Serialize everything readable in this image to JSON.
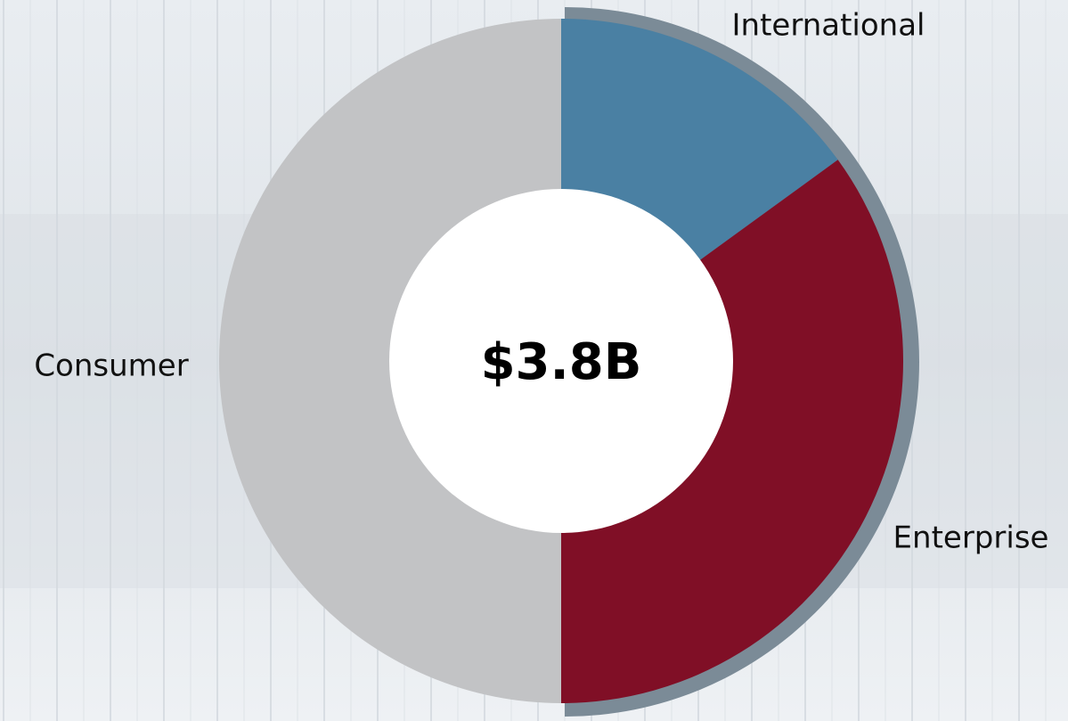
{
  "chart_data": {
    "type": "pie",
    "donut": true,
    "center_label": "$3.8B",
    "categories": [
      "International",
      "Enterprise",
      "Consumer"
    ],
    "values": [
      15,
      35,
      50
    ],
    "colors": [
      "#4a80a3",
      "#800f26",
      "#c2c3c5"
    ]
  }
}
